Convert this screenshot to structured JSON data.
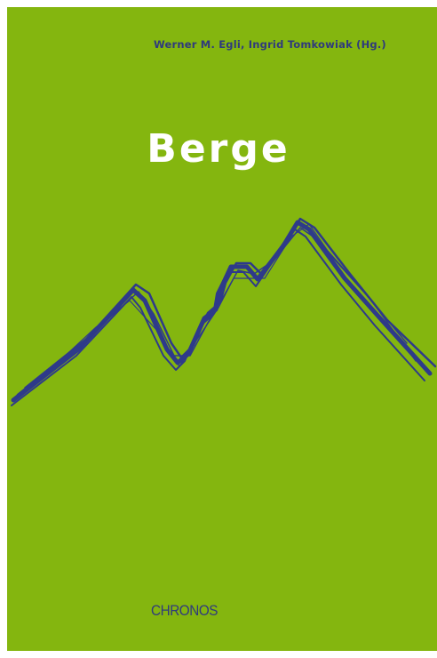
{
  "cover": {
    "authors": "Werner M. Egli, Ingrid Tomkowiak (Hg.)",
    "title": "Berge",
    "publisher": "CHRONOS"
  }
}
